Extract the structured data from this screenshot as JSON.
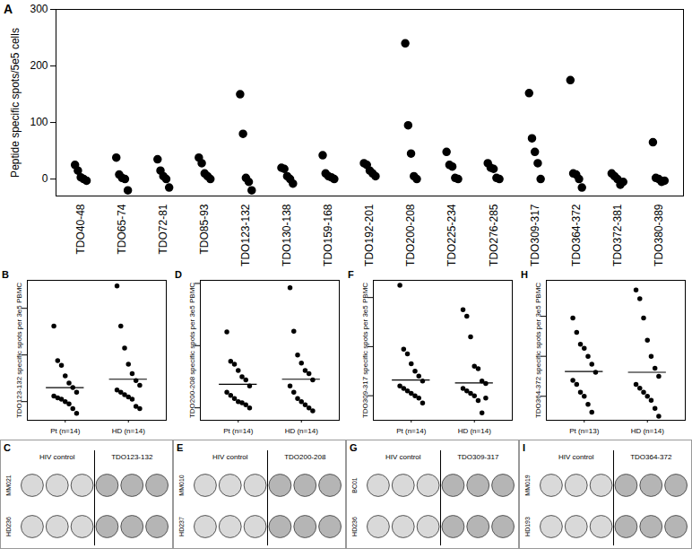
{
  "chart_data": [
    {
      "type": "scatter",
      "title": "A",
      "ylabel": "Peptide specific spots/5e5 cells",
      "color": "#000000",
      "marker": "circle",
      "categories": [
        "TDO40-48",
        "TDO65-74",
        "TDO72-81",
        "TDO85-93",
        "TDO123-132",
        "TDO130-138",
        "TDO159-168",
        "TDO192-201",
        "TDO200-208",
        "TDO225-234",
        "TDO276-285",
        "TDO309-317",
        "TDO364-372",
        "TDO372-381",
        "TDO380-389"
      ],
      "values": [
        [
          25,
          15,
          3,
          0,
          -3
        ],
        [
          38,
          8,
          2,
          0,
          -20
        ],
        [
          35,
          15,
          5,
          0,
          -15
        ],
        [
          38,
          28,
          10,
          5,
          0
        ],
        [
          150,
          80,
          2,
          -5,
          -20
        ],
        [
          20,
          18,
          5,
          0,
          -8
        ],
        [
          42,
          10,
          5,
          3,
          0
        ],
        [
          28,
          25,
          15,
          10,
          5
        ],
        [
          240,
          95,
          45,
          5,
          0
        ],
        [
          48,
          25,
          22,
          2,
          0
        ],
        [
          28,
          20,
          18,
          2,
          0
        ],
        [
          152,
          72,
          48,
          28,
          0
        ],
        [
          175,
          10,
          8,
          0,
          -15
        ],
        [
          10,
          5,
          0,
          -10,
          -5
        ],
        [
          65,
          2,
          0,
          -5,
          -3
        ]
      ],
      "ylim": [
        -30,
        300
      ],
      "yticks": [
        0,
        100,
        200,
        300
      ]
    },
    {
      "type": "scatter",
      "title": "B",
      "ylabel": "TDO123-132 specific spots per 3e5 PBMC",
      "color": "#000000",
      "marker": "circle",
      "tick_labels": "x",
      "categories": [
        "Pt (n=14)",
        "HD (n=14)"
      ],
      "values": [
        [
          162,
          88,
          78,
          55,
          40,
          30,
          20,
          12,
          8,
          5,
          0,
          -5,
          -15,
          -25
        ],
        [
          248,
          162,
          115,
          80,
          60,
          45,
          35,
          25,
          20,
          15,
          10,
          5,
          -10,
          -15
        ]
      ],
      "means": [
        30,
        48
      ],
      "ylim": [
        -40,
        260
      ],
      "yticks": [
        0,
        100,
        200
      ]
    },
    {
      "type": "scatter",
      "title": "D",
      "ylabel": "TDO200-208 specific spots per 3e5 PBMC",
      "color": "#000000",
      "marker": "circle",
      "tick_labels": "x",
      "categories": [
        "Pt (n=14)",
        "HD (n=14)"
      ],
      "values": [
        [
          122,
          75,
          70,
          60,
          50,
          45,
          35,
          25,
          20,
          15,
          10,
          8,
          5,
          0
        ],
        [
          193,
          123,
          85,
          72,
          60,
          55,
          45,
          35,
          25,
          15,
          10,
          5,
          0,
          -5
        ]
      ],
      "means": [
        38,
        46
      ],
      "ylim": [
        -20,
        205
      ],
      "yticks": [
        0,
        100,
        200
      ]
    },
    {
      "type": "scatter",
      "title": "F",
      "ylabel": "TDO309-317 specific spots per 3e5 PBMC",
      "color": "#000000",
      "marker": "circle",
      "tick_labels": "x",
      "categories": [
        "Pt (n=14)",
        "HD (n=14)"
      ],
      "values": [
        [
          225,
          95,
          85,
          65,
          50,
          40,
          30,
          20,
          15,
          10,
          5,
          0,
          -5,
          -15
        ],
        [
          175,
          162,
          120,
          60,
          55,
          30,
          25,
          15,
          10,
          5,
          0,
          -10,
          -35,
          -5
        ]
      ],
      "means": [
        32,
        26
      ],
      "ylim": [
        -50,
        235
      ],
      "yticks": [
        0,
        100,
        200
      ]
    },
    {
      "type": "scatter",
      "title": "H",
      "ylabel": "TDO364-372 specific spots per 3e5 PBMC",
      "color": "#000000",
      "marker": "circle",
      "tick_labels": "x",
      "categories": [
        "Pt (n=13)",
        "HD (n=14)"
      ],
      "values": [
        [
          98,
          80,
          65,
          60,
          50,
          40,
          30,
          20,
          15,
          5,
          0,
          -10,
          -20
        ],
        [
          133,
          122,
          98,
          70,
          50,
          35,
          25,
          15,
          10,
          5,
          0,
          -5,
          -15,
          -25
        ]
      ],
      "means": [
        31,
        30
      ],
      "ylim": [
        -30,
        145
      ],
      "yticks": [
        0,
        50,
        100
      ]
    }
  ],
  "well_panels": [
    {
      "title": "C",
      "columns": [
        "HIV control",
        "TDO123-132"
      ],
      "rows": [
        "MM021",
        "HD236"
      ]
    },
    {
      "title": "E",
      "columns": [
        "HIV control",
        "TDO200-208"
      ],
      "rows": [
        "MM010",
        "HD237"
      ]
    },
    {
      "title": "G",
      "columns": [
        "HIV control",
        "TDO309-317"
      ],
      "rows": [
        "BC01",
        "HD236"
      ]
    },
    {
      "title": "I",
      "columns": [
        "HIV control",
        "TDO364-372"
      ],
      "rows": [
        "MM019",
        "HD193"
      ]
    }
  ]
}
